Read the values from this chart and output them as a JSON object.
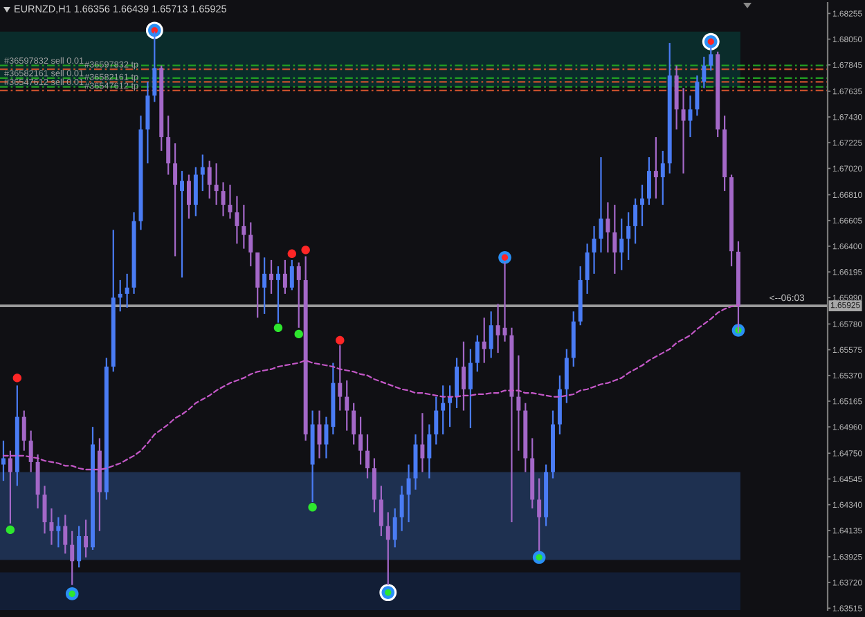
{
  "chart_data": {
    "type": "candlestick",
    "title": "EURNZD,H1 1.66356 1.66439 1.65713 1.65925",
    "categories": [
      null,
      null,
      null,
      null,
      null,
      null,
      null,
      null,
      null,
      null,
      null,
      null,
      null,
      null,
      null,
      null,
      null,
      null,
      null,
      null,
      null,
      null,
      null,
      null,
      null,
      null,
      null,
      null,
      null,
      null,
      null,
      null,
      null,
      null,
      null,
      null,
      null,
      null,
      null,
      null,
      null,
      null,
      null,
      null,
      null,
      null,
      null,
      null,
      null,
      null,
      null,
      null,
      null,
      null,
      null,
      null,
      null,
      null,
      null,
      null,
      null,
      null,
      null,
      null,
      null,
      null,
      null,
      null,
      null,
      null,
      null,
      null,
      null,
      null,
      null,
      null,
      null,
      null,
      null,
      null,
      null,
      null,
      null,
      null,
      null,
      null,
      null,
      null,
      null,
      null,
      null,
      null,
      null,
      null,
      null,
      null,
      null,
      null,
      null,
      null,
      null,
      null,
      null,
      null,
      null,
      null,
      null,
      null
    ],
    "series": [
      {
        "type": "candlestick",
        "ohlc": [
          [
            1.6466,
            1.6485,
            1.6453,
            1.6471
          ],
          [
            1.6471,
            1.6477,
            1.6419,
            1.646
          ],
          [
            1.646,
            1.6529,
            1.6449,
            1.6504
          ],
          [
            1.6504,
            1.6509,
            1.6477,
            1.6485
          ],
          [
            1.6485,
            1.6493,
            1.646,
            1.6468
          ],
          [
            1.6468,
            1.6474,
            1.6431,
            1.6442
          ],
          [
            1.6442,
            1.6449,
            1.6411,
            1.642
          ],
          [
            1.642,
            1.6431,
            1.6402,
            1.6413
          ],
          [
            1.6413,
            1.6424,
            1.64,
            1.6417
          ],
          [
            1.6417,
            1.6426,
            1.6395,
            1.6402
          ],
          [
            1.6402,
            1.6413,
            1.637,
            1.6389
          ],
          [
            1.6389,
            1.6417,
            1.6384,
            1.6409
          ],
          [
            1.6409,
            1.6422,
            1.6392,
            1.64
          ],
          [
            1.64,
            1.6496,
            1.6398,
            1.6482
          ],
          [
            1.6477,
            1.6487,
            1.6413,
            1.6444
          ],
          [
            1.6444,
            1.6551,
            1.6438,
            1.6544
          ],
          [
            1.6544,
            1.6653,
            1.654,
            1.6599
          ],
          [
            1.6599,
            1.6613,
            1.6588,
            1.6602
          ],
          [
            1.6602,
            1.6618,
            1.6591,
            1.6607
          ],
          [
            1.6607,
            1.6667,
            1.6602,
            1.666
          ],
          [
            1.666,
            1.6744,
            1.6653,
            1.6733
          ],
          [
            1.6733,
            1.6771,
            1.6706,
            1.676
          ],
          [
            1.676,
            1.6811,
            1.6755,
            1.6782
          ],
          [
            1.6782,
            1.6784,
            1.6716,
            1.6727
          ],
          [
            1.6727,
            1.6744,
            1.6697,
            1.6706
          ],
          [
            1.6706,
            1.6722,
            1.6632,
            1.6689
          ],
          [
            1.6684,
            1.67,
            1.6615,
            1.6692
          ],
          [
            1.6692,
            1.6697,
            1.6662,
            1.6673
          ],
          [
            1.6673,
            1.6703,
            1.6664,
            1.6697
          ],
          [
            1.6697,
            1.6713,
            1.6684,
            1.6703
          ],
          [
            1.6703,
            1.6708,
            1.6678,
            1.6689
          ],
          [
            1.6689,
            1.6706,
            1.6673,
            1.6684
          ],
          [
            1.6684,
            1.6691,
            1.6664,
            1.6673
          ],
          [
            1.6673,
            1.6689,
            1.6662,
            1.6667
          ],
          [
            1.6667,
            1.668,
            1.6642,
            1.6656
          ],
          [
            1.6656,
            1.6673,
            1.6638,
            1.6649
          ],
          [
            1.6649,
            1.6659,
            1.6624,
            1.6635
          ],
          [
            1.6635,
            1.6635,
            1.6583,
            1.6607
          ],
          [
            1.6607,
            1.6631,
            1.6586,
            1.6618
          ],
          [
            1.6618,
            1.6629,
            1.6602,
            1.6613
          ],
          [
            1.6613,
            1.6624,
            1.6579,
            1.6618
          ],
          [
            1.6618,
            1.6629,
            1.6602,
            1.6607
          ],
          [
            1.6607,
            1.6629,
            1.6605,
            1.6624
          ],
          [
            1.6624,
            1.6627,
            1.6575,
            1.6613
          ],
          [
            1.6613,
            1.6632,
            1.6485,
            1.649
          ],
          [
            1.6466,
            1.6509,
            1.6436,
            1.6498
          ],
          [
            1.6498,
            1.6509,
            1.6471,
            1.6482
          ],
          [
            1.6482,
            1.6504,
            1.6471,
            1.6498
          ],
          [
            1.6496,
            1.6547,
            1.649,
            1.6531
          ],
          [
            1.6531,
            1.6561,
            1.6509,
            1.652
          ],
          [
            1.652,
            1.6533,
            1.6493,
            1.6509
          ],
          [
            1.6509,
            1.6515,
            1.6482,
            1.649
          ],
          [
            1.649,
            1.6504,
            1.6466,
            1.6477
          ],
          [
            1.6477,
            1.649,
            1.6455,
            1.6463
          ],
          [
            1.6463,
            1.6471,
            1.6428,
            1.6438
          ],
          [
            1.6438,
            1.6449,
            1.6409,
            1.6417
          ],
          [
            1.6417,
            1.6428,
            1.637,
            1.6406
          ],
          [
            1.6406,
            1.6431,
            1.64,
            1.6424
          ],
          [
            1.6424,
            1.6449,
            1.6413,
            1.6442
          ],
          [
            1.6442,
            1.6466,
            1.642,
            1.6455
          ],
          [
            1.6455,
            1.649,
            1.6446,
            1.6482
          ],
          [
            1.6482,
            1.6507,
            1.646,
            1.6471
          ],
          [
            1.6471,
            1.6498,
            1.6455,
            1.649
          ],
          [
            1.649,
            1.652,
            1.6482,
            1.6509
          ],
          [
            1.6509,
            1.6529,
            1.649,
            1.6515
          ],
          [
            1.6515,
            1.6529,
            1.6496,
            1.652
          ],
          [
            1.652,
            1.6551,
            1.6511,
            1.6544
          ],
          [
            1.6544,
            1.6564,
            1.6509,
            1.6526
          ],
          [
            1.6526,
            1.6558,
            1.6495,
            1.6547
          ],
          [
            1.6547,
            1.6569,
            1.654,
            1.6564
          ],
          [
            1.6564,
            1.6583,
            1.6547,
            1.6558
          ],
          [
            1.6558,
            1.6588,
            1.6551,
            1.6577
          ],
          [
            1.6577,
            1.6594,
            1.6555,
            1.6569
          ],
          [
            1.6575,
            1.6627,
            1.6564,
            1.6569
          ],
          [
            1.6569,
            1.6575,
            1.642,
            1.652
          ],
          [
            1.652,
            1.6553,
            1.6477,
            1.6509
          ],
          [
            1.6509,
            1.6515,
            1.646,
            1.6471
          ],
          [
            1.6471,
            1.6487,
            1.6431,
            1.6438
          ],
          [
            1.6438,
            1.6455,
            1.6397,
            1.6424
          ],
          [
            1.6424,
            1.6466,
            1.6417,
            1.646
          ],
          [
            1.646,
            1.6509,
            1.6455,
            1.6498
          ],
          [
            1.6498,
            1.6537,
            1.649,
            1.6526
          ],
          [
            1.6526,
            1.6558,
            1.6515,
            1.6551
          ],
          [
            1.6551,
            1.6588,
            1.6544,
            1.658
          ],
          [
            1.658,
            1.6624,
            1.6577,
            1.6613
          ],
          [
            1.6613,
            1.6642,
            1.6602,
            1.6635
          ],
          [
            1.6635,
            1.6656,
            1.6618,
            1.6646
          ],
          [
            1.6646,
            1.6711,
            1.6635,
            1.6662
          ],
          [
            1.6662,
            1.6675,
            1.6635,
            1.6651
          ],
          [
            1.6651,
            1.6673,
            1.6618,
            1.6635
          ],
          [
            1.6635,
            1.6662,
            1.6621,
            1.6646
          ],
          [
            1.6646,
            1.6667,
            1.6629,
            1.6656
          ],
          [
            1.6656,
            1.6678,
            1.6642,
            1.6673
          ],
          [
            1.6673,
            1.6689,
            1.6656,
            1.6678
          ],
          [
            1.6678,
            1.6711,
            1.6673,
            1.67
          ],
          [
            1.67,
            1.6727,
            1.6678,
            1.6695
          ],
          [
            1.6695,
            1.6716,
            1.6673,
            1.6706
          ],
          [
            1.6706,
            1.6802,
            1.6698,
            1.6776
          ],
          [
            1.6776,
            1.6784,
            1.6733,
            1.6749
          ],
          [
            1.6749,
            1.6766,
            1.6698,
            1.674
          ],
          [
            1.674,
            1.676,
            1.6727,
            1.6749
          ],
          [
            1.6749,
            1.6776,
            1.6744,
            1.6771
          ],
          [
            1.6771,
            1.6791,
            1.6766,
            1.6784
          ],
          [
            1.6784,
            1.68,
            1.678,
            1.6793
          ],
          [
            1.6793,
            1.6795,
            1.6727,
            1.6733
          ],
          [
            1.6733,
            1.6744,
            1.6684,
            1.6695
          ],
          [
            1.6695,
            1.6697,
            1.6624,
            1.6636
          ],
          [
            1.66356,
            1.66439,
            1.65713,
            1.65925
          ]
        ],
        "colors": [
          "#4a7cf4",
          "#a468c8",
          "#4a7cf4",
          "#a468c8",
          "#a468c8",
          "#a468c8",
          "#a468c8",
          "#a468c8",
          "#4a7cf4",
          "#a468c8",
          "#a468c8",
          "#4a7cf4",
          "#a468c8",
          "#4a7cf4",
          "#a468c8",
          "#4a7cf4",
          "#4a7cf4",
          "#4a7cf4",
          "#4a7cf4",
          "#4a7cf4",
          "#4a7cf4",
          "#4a7cf4",
          "#4a7cf4",
          "#a468c8",
          "#a468c8",
          "#a468c8",
          "#4a7cf4",
          "#a468c8",
          "#4a7cf4",
          "#4a7cf4",
          "#a468c8",
          "#a468c8",
          "#a468c8",
          "#a468c8",
          "#a468c8",
          "#a468c8",
          "#a468c8",
          "#a468c8",
          "#4a7cf4",
          "#a468c8",
          "#4a7cf4",
          "#a468c8",
          "#4a7cf4",
          "#a468c8",
          "#a468c8",
          "#4a7cf4",
          "#a468c8",
          "#4a7cf4",
          "#4a7cf4",
          "#a468c8",
          "#a468c8",
          "#a468c8",
          "#a468c8",
          "#a468c8",
          "#a468c8",
          "#a468c8",
          "#a468c8",
          "#4a7cf4",
          "#4a7cf4",
          "#4a7cf4",
          "#4a7cf4",
          "#a468c8",
          "#4a7cf4",
          "#4a7cf4",
          "#4a7cf4",
          "#4a7cf4",
          "#4a7cf4",
          "#a468c8",
          "#4a7cf4",
          "#4a7cf4",
          "#a468c8",
          "#4a7cf4",
          "#a468c8",
          "#a468c8",
          "#a468c8",
          "#a468c8",
          "#a468c8",
          "#a468c8",
          "#a468c8",
          "#4a7cf4",
          "#4a7cf4",
          "#4a7cf4",
          "#4a7cf4",
          "#4a7cf4",
          "#4a7cf4",
          "#4a7cf4",
          "#4a7cf4",
          "#4a7cf4",
          "#a468c8",
          "#a468c8",
          "#4a7cf4",
          "#4a7cf4",
          "#4a7cf4",
          "#4a7cf4",
          "#4a7cf4",
          "#a468c8",
          "#4a7cf4",
          "#4a7cf4",
          "#a468c8",
          "#a468c8",
          "#4a7cf4",
          "#4a7cf4",
          "#4a7cf4",
          "#4a7cf4",
          "#a468c8",
          "#a468c8",
          "#a468c8",
          "#a468c8"
        ]
      },
      {
        "type": "line",
        "color": "#c458c8",
        "line_style": "dashed",
        "values": [
          1.6473,
          1.6473,
          1.6473,
          1.6473,
          1.6472,
          1.6471,
          1.6469,
          1.6468,
          1.6467,
          1.6465,
          1.6465,
          1.6463,
          1.6462,
          1.6462,
          1.6462,
          1.6463,
          1.6465,
          1.6467,
          1.647,
          1.6473,
          1.6477,
          1.6483,
          1.649,
          1.6494,
          1.6498,
          1.6503,
          1.6506,
          1.651,
          1.6515,
          1.6518,
          1.6521,
          1.6525,
          1.6528,
          1.6531,
          1.6533,
          1.6535,
          1.6538,
          1.654,
          1.6541,
          1.6542,
          1.6544,
          1.6545,
          1.6546,
          1.6547,
          1.6549,
          1.6547,
          1.6546,
          1.6545,
          1.6544,
          1.6542,
          1.6541,
          1.654,
          1.6538,
          1.6537,
          1.6534,
          1.6532,
          1.653,
          1.6528,
          1.6526,
          1.6525,
          1.6523,
          1.6523,
          1.6522,
          1.6521,
          1.652,
          1.652,
          1.652,
          1.6521,
          1.6521,
          1.6522,
          1.6522,
          1.6523,
          1.6523,
          1.6525,
          1.6525,
          1.6525,
          1.6523,
          1.6523,
          1.6522,
          1.6521,
          1.652,
          1.652,
          1.6521,
          1.6522,
          1.6525,
          1.6526,
          1.6528,
          1.653,
          1.6531,
          1.6533,
          1.6535,
          1.6539,
          1.6542,
          1.6545,
          1.6549,
          1.6552,
          1.6555,
          1.6558,
          1.6563,
          1.6566,
          1.6569,
          1.6574,
          1.6578,
          1.6582,
          1.6587,
          1.659,
          1.6592,
          1.6593
        ]
      },
      {
        "type": "bubble",
        "color": "#ffffff",
        "values": [
          null,
          null,
          null,
          null,
          null,
          null,
          null,
          null,
          null,
          null,
          null,
          null,
          null,
          null,
          null,
          null,
          null,
          null,
          null,
          null,
          null,
          null,
          1.6812,
          null,
          null,
          null,
          null,
          null,
          null,
          null,
          null,
          null,
          null,
          null,
          null,
          null,
          null,
          null,
          null,
          null,
          null,
          null,
          null,
          null,
          null,
          null,
          null,
          null,
          null,
          null,
          null,
          null,
          null,
          null,
          null,
          null,
          1.6364,
          null,
          null,
          null,
          null,
          null,
          null,
          null,
          null,
          null,
          null,
          null,
          null,
          null,
          null,
          null,
          null,
          null,
          null,
          null,
          null,
          null,
          null,
          null,
          null,
          null,
          null,
          null,
          null,
          null,
          null,
          null,
          null,
          null,
          null,
          null,
          null,
          null,
          null,
          null,
          null,
          null,
          null,
          null,
          null,
          null,
          null,
          1.6803,
          null,
          null,
          null,
          null
        ],
        "sizes": [
          null,
          null,
          null,
          null,
          null,
          null,
          null,
          null,
          null,
          null,
          null,
          null,
          null,
          null,
          null,
          null,
          null,
          null,
          null,
          null,
          null,
          null,
          1,
          null,
          null,
          null,
          null,
          null,
          null,
          null,
          null,
          null,
          null,
          null,
          null,
          null,
          null,
          null,
          null,
          null,
          null,
          null,
          null,
          null,
          null,
          null,
          null,
          null,
          null,
          null,
          null,
          null,
          null,
          null,
          null,
          null,
          1,
          null,
          null,
          null,
          null,
          null,
          null,
          null,
          null,
          null,
          null,
          null,
          null,
          null,
          null,
          null,
          null,
          null,
          null,
          null,
          null,
          null,
          null,
          null,
          null,
          null,
          null,
          null,
          null,
          null,
          null,
          null,
          null,
          null,
          null,
          null,
          null,
          null,
          null,
          null,
          null,
          null,
          null,
          null,
          null,
          null,
          null,
          1,
          null,
          null,
          null,
          null
        ]
      },
      {
        "type": "bubble",
        "color": "#2a8ff5",
        "values": [
          null,
          null,
          null,
          null,
          null,
          null,
          null,
          null,
          null,
          null,
          1.6363,
          null,
          null,
          null,
          null,
          null,
          null,
          null,
          null,
          null,
          null,
          null,
          1.6812,
          null,
          null,
          null,
          null,
          null,
          null,
          null,
          null,
          null,
          null,
          null,
          null,
          null,
          null,
          null,
          null,
          null,
          null,
          null,
          null,
          null,
          null,
          null,
          null,
          null,
          null,
          null,
          null,
          null,
          null,
          null,
          null,
          null,
          1.6364,
          null,
          null,
          null,
          null,
          null,
          null,
          null,
          null,
          null,
          null,
          null,
          null,
          null,
          null,
          null,
          null,
          1.6631,
          null,
          null,
          null,
          null,
          1.6392,
          null,
          null,
          null,
          null,
          null,
          null,
          null,
          null,
          null,
          null,
          null,
          null,
          null,
          null,
          null,
          null,
          null,
          null,
          null,
          null,
          null,
          null,
          null,
          null,
          1.6803,
          null,
          null,
          null,
          1.6573
        ],
        "sizes": [
          null,
          null,
          null,
          null,
          null,
          null,
          null,
          null,
          null,
          null,
          0.56,
          null,
          null,
          null,
          null,
          null,
          null,
          null,
          null,
          null,
          null,
          null,
          0.56,
          null,
          null,
          null,
          null,
          null,
          null,
          null,
          null,
          null,
          null,
          null,
          null,
          null,
          null,
          null,
          null,
          null,
          null,
          null,
          null,
          null,
          null,
          null,
          null,
          null,
          null,
          null,
          null,
          null,
          null,
          null,
          null,
          null,
          0.56,
          null,
          null,
          null,
          null,
          null,
          null,
          null,
          null,
          null,
          null,
          null,
          null,
          null,
          null,
          null,
          null,
          0.56,
          null,
          null,
          null,
          null,
          0.56,
          null,
          null,
          null,
          null,
          null,
          null,
          null,
          null,
          null,
          null,
          null,
          null,
          null,
          null,
          null,
          null,
          null,
          null,
          null,
          null,
          null,
          null,
          null,
          null,
          0.56,
          null,
          null,
          null,
          0.56
        ]
      },
      {
        "type": "bubble",
        "color": "#ff2626",
        "values": [
          null,
          null,
          1.6535,
          null,
          null,
          null,
          null,
          null,
          null,
          null,
          null,
          null,
          null,
          null,
          null,
          null,
          null,
          null,
          null,
          null,
          null,
          null,
          1.6812,
          null,
          null,
          null,
          null,
          null,
          null,
          null,
          null,
          null,
          null,
          null,
          null,
          null,
          null,
          null,
          null,
          null,
          null,
          null,
          1.6634,
          null,
          1.6637,
          null,
          null,
          null,
          null,
          1.6565,
          null,
          null,
          null,
          null,
          null,
          null,
          null,
          null,
          null,
          null,
          null,
          null,
          null,
          null,
          null,
          null,
          null,
          null,
          null,
          null,
          null,
          null,
          null,
          1.6631,
          null,
          null,
          null,
          null,
          null,
          null,
          null,
          null,
          null,
          null,
          null,
          null,
          null,
          null,
          null,
          null,
          null,
          null,
          null,
          null,
          null,
          null,
          null,
          null,
          null,
          null,
          null,
          null,
          null,
          1.6803,
          null,
          null,
          null,
          null
        ],
        "sizes": [
          null,
          null,
          0.25,
          null,
          null,
          null,
          null,
          null,
          null,
          null,
          null,
          null,
          null,
          null,
          null,
          null,
          null,
          null,
          null,
          null,
          null,
          null,
          0.14,
          null,
          null,
          null,
          null,
          null,
          null,
          null,
          null,
          null,
          null,
          null,
          null,
          null,
          null,
          null,
          null,
          null,
          null,
          null,
          0.25,
          null,
          0.25,
          null,
          null,
          null,
          null,
          0.25,
          null,
          null,
          null,
          null,
          null,
          null,
          null,
          null,
          null,
          null,
          null,
          null,
          null,
          null,
          null,
          null,
          null,
          null,
          null,
          null,
          null,
          null,
          null,
          0.14,
          null,
          null,
          null,
          null,
          null,
          null,
          null,
          null,
          null,
          null,
          null,
          null,
          null,
          null,
          null,
          null,
          null,
          null,
          null,
          null,
          null,
          null,
          null,
          null,
          null,
          null,
          null,
          null,
          null,
          0.14,
          null,
          null,
          null,
          null
        ]
      },
      {
        "type": "bubble",
        "color": "#2ee62e",
        "values": [
          null,
          1.6414,
          null,
          null,
          null,
          null,
          null,
          null,
          null,
          null,
          1.6363,
          null,
          null,
          null,
          null,
          null,
          null,
          null,
          null,
          null,
          null,
          null,
          null,
          null,
          null,
          null,
          null,
          null,
          null,
          null,
          null,
          null,
          null,
          null,
          null,
          null,
          null,
          null,
          null,
          null,
          1.6575,
          null,
          null,
          1.657,
          null,
          1.6432,
          null,
          null,
          null,
          null,
          null,
          null,
          null,
          null,
          null,
          null,
          1.6364,
          null,
          null,
          null,
          null,
          null,
          null,
          null,
          null,
          null,
          null,
          null,
          null,
          null,
          null,
          null,
          null,
          null,
          null,
          null,
          null,
          null,
          1.6392,
          null,
          null,
          null,
          null,
          null,
          null,
          null,
          null,
          null,
          null,
          null,
          null,
          null,
          null,
          null,
          null,
          null,
          null,
          null,
          null,
          null,
          null,
          null,
          null,
          null,
          null,
          null,
          null,
          1.6573
        ],
        "sizes": [
          null,
          0.25,
          null,
          null,
          null,
          null,
          null,
          null,
          null,
          null,
          0.14,
          null,
          null,
          null,
          null,
          null,
          null,
          null,
          null,
          null,
          null,
          null,
          null,
          null,
          null,
          null,
          null,
          null,
          null,
          null,
          null,
          null,
          null,
          null,
          null,
          null,
          null,
          null,
          null,
          null,
          0.25,
          null,
          null,
          0.25,
          null,
          0.25,
          null,
          null,
          null,
          null,
          null,
          null,
          null,
          null,
          null,
          null,
          0.14,
          null,
          null,
          null,
          null,
          null,
          null,
          null,
          null,
          null,
          null,
          null,
          null,
          null,
          null,
          null,
          null,
          null,
          null,
          null,
          null,
          null,
          0.14,
          null,
          null,
          null,
          null,
          null,
          null,
          null,
          null,
          null,
          null,
          null,
          null,
          null,
          null,
          null,
          null,
          null,
          null,
          null,
          null,
          null,
          null,
          null,
          null,
          null,
          null,
          null,
          null,
          0.14
        ]
      }
    ],
    "ylim": [
      1.635,
      1.6834
    ],
    "yticks": [
      1.68255,
      {
        "value": 1.6805,
        "label": "1.68050"
      },
      1.67845,
      1.67635,
      {
        "value": 1.6743,
        "label": "1.67430"
      },
      1.67225,
      {
        "value": 1.6702,
        "label": "1.67020"
      },
      {
        "value": 1.6681,
        "label": "1.66810"
      },
      1.66605,
      {
        "value": 1.664,
        "label": "1.66400"
      },
      1.66195,
      {
        "value": 1.6599,
        "label": "1.65990"
      },
      {
        "value": 1.6578,
        "label": "1.65780"
      },
      1.65575,
      {
        "value": 1.6537,
        "label": "1.65370"
      },
      1.65165,
      {
        "value": 1.6496,
        "label": "1.64960"
      },
      {
        "value": 1.6475,
        "label": "1.64750"
      },
      1.64545,
      {
        "value": 1.6434,
        "label": "1.64340"
      },
      1.64135,
      1.63925,
      {
        "value": 1.6372,
        "label": "1.63720"
      },
      1.63515
    ],
    "tick_labels": "y",
    "bands": [
      {
        "axis": "y",
        "from": 1.6767,
        "to": 1.6811,
        "color": "#0a2c2b"
      },
      {
        "axis": "y",
        "from": 1.639,
        "to": 1.646,
        "color": "#1e3050"
      },
      {
        "axis": "y",
        "from": 1.635,
        "to": 1.638,
        "color": "#121e36"
      }
    ],
    "ref_lines": [
      {
        "axis": "y",
        "value": 1.6784,
        "label": "#36597832 sell 0.01",
        "color": "#22a022",
        "line_style": "dashdot"
      },
      {
        "axis": "y",
        "value": 1.6781,
        "label": "#36597832 tp",
        "color": "#c8502d",
        "line_style": "dashdot"
      },
      {
        "axis": "y",
        "value": 1.6774,
        "label": "#36582161 sell 0.01",
        "color": "#22a022",
        "line_style": "dashdot"
      },
      {
        "axis": "y",
        "value": 1.6771,
        "label": "#36582161 tp",
        "color": "#c8502d",
        "line_style": "dashdot"
      },
      {
        "axis": "y",
        "value": 1.6767,
        "label": "#36547612 sell 0.01",
        "color": "#22a022",
        "line_style": "dashdot"
      },
      {
        "axis": "y",
        "value": 1.6764,
        "label": "#36547612 tp",
        "color": "#c8502d",
        "line_style": "dashdot"
      },
      {
        "axis": "y",
        "value": 1.65925,
        "label": "1.65925",
        "color": "#9a9a9a",
        "line_style": "solid"
      }
    ],
    "annotations": [
      {
        "text": "<--06:03",
        "y": 1.65925
      }
    ]
  }
}
